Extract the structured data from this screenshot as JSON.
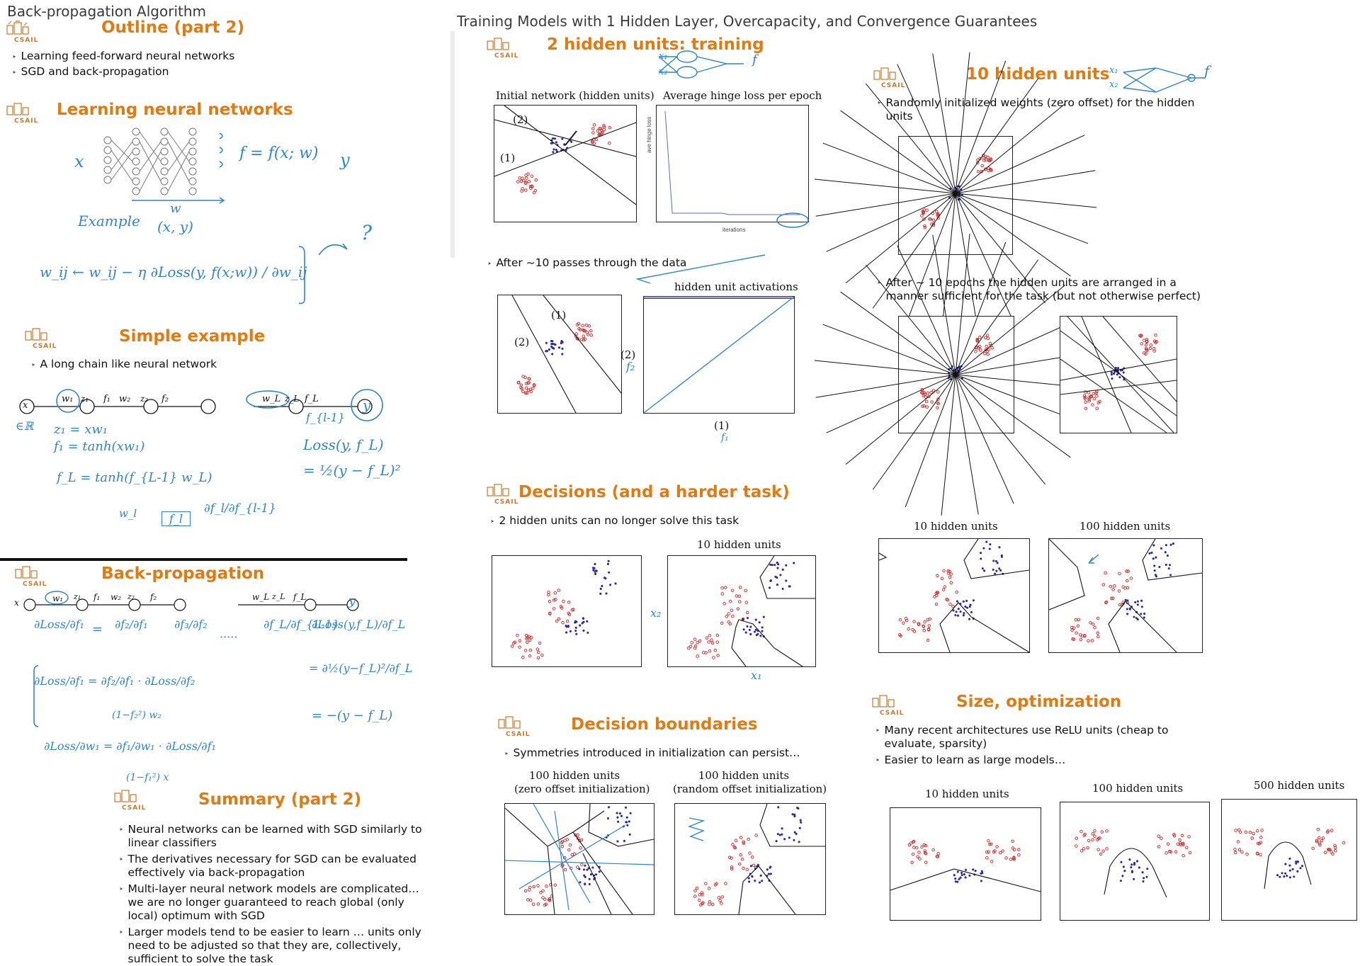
{
  "page_title_left": "Back-propagation Algorithm",
  "page_title_center": "Training Models with 1 Hidden Layer, Overcapacity, and Convergence Guarantees",
  "logo_text": "CSAIL",
  "colors": {
    "accent": "#e07b12",
    "ink": "#2f86c8",
    "red": "#d22222",
    "blue": "#2222aa"
  },
  "left": {
    "outline": {
      "title": "Outline (part 2)",
      "bullets": [
        "Learning feed-forward neural networks",
        "SGD and back-propagation"
      ]
    },
    "learning": {
      "title": "Learning neural networks",
      "notes": [
        "f = f(x; w)",
        "x",
        "y",
        "Example",
        "(x, y)",
        "w",
        "w_ij ← w_ij − η ∂Loss(y, f(x;w)) / ∂w_ij",
        "?"
      ]
    },
    "simple": {
      "title": "Simple example",
      "bullets": [
        "A long chain like neural network"
      ],
      "notes": [
        "z₁ = xw₁",
        "f₁ = tanh(xw₁)",
        "f_L = tanh(f_{L-1} w_L)",
        "Loss(y, f_L)",
        "= ½(y − f_L)²",
        "∈ℝ",
        "∈ℝ",
        "f_{l-1}",
        "w_l",
        "f_l",
        "∂f_l/∂f_{l-1}"
      ],
      "chain": [
        "x",
        "w₁",
        "z₁",
        "f₁",
        "w₂",
        "z₂",
        "f₂",
        "w_L",
        "z_L",
        "f_L",
        "y"
      ]
    },
    "backprop": {
      "title": "Back-propagation",
      "chain": [
        "x",
        "w₁",
        "z₁",
        "f₁",
        "w₂",
        "z₂",
        "f₂",
        "w_L",
        "z_L",
        "f_L",
        "y"
      ],
      "notes": [
        "∂Loss/∂f₁",
        "=",
        "∂f₂/∂f₁",
        "∂f₃/∂f₂",
        "·····",
        "∂f_L/∂f_{L-1}",
        "∂Loss(y,f_L)/∂f_L",
        "∂Loss/∂f₁ = ∂f₂/∂f₁ · ∂Loss/∂f₂",
        "(1−f₂²) w₂",
        "= ∂½(y−f_L)²/∂f_L",
        "= −(y − f_L)",
        "∂Loss/∂w₁ = ∂f₁/∂w₁ · ∂Loss/∂f₁",
        "(1−f₁²) x"
      ]
    },
    "summary": {
      "title": "Summary (part 2)",
      "bullets": [
        "Neural networks can be learned with SGD similarly to linear classifiers",
        "The derivatives necessary for SGD can be evaluated effectively via back-propagation",
        "Multi-layer neural network models are complicated… we are no longer guaranteed to reach global (only local) optimum with SGD",
        "Larger models tend to be easier to learn … units only need to be adjusted so that they are, collectively, sufficient to solve the task"
      ]
    }
  },
  "center": {
    "two_units": {
      "title": "2 hidden units: training",
      "plot1_title": "Initial network (hidden units)",
      "plot2_title": "Average hinge loss per epoch",
      "plot2_ylabel": "ave hinge loss",
      "plot2_xlabel": "iterations",
      "bullets": [
        "After ~10 passes through the data"
      ],
      "plot4_title": "hidden unit activations",
      "labels": [
        "(1)",
        "(2)",
        "(1)",
        "(2)",
        "(2)",
        "(1)",
        "f₁",
        "f₂",
        "f",
        "x₁",
        "x₂"
      ]
    },
    "decisions": {
      "title": "Decisions (and a harder task)",
      "bullets": [
        "2 hidden units can no longer solve this task"
      ],
      "plot_title": "10 hidden units",
      "hw": [
        "x₂",
        "x₁"
      ]
    },
    "boundaries": {
      "title": "Decision boundaries",
      "bullets": [
        "Symmetries introduced in initialization can persist…"
      ],
      "plot1_title": [
        "100 hidden units",
        "(zero offset initialization)"
      ],
      "plot2_title": [
        "100 hidden units",
        "(random offset initialization)"
      ]
    }
  },
  "right": {
    "ten_units": {
      "title": "10 hidden units",
      "bullets": [
        "Randomly initialized weights (zero offset) for the hidden units",
        "After ~ 10 epochs the hidden units are arranged in a manner sufficient for the task (but not otherwise perfect)"
      ],
      "hw": [
        "x₁",
        "x₂",
        "f"
      ]
    },
    "harder": {
      "plot1_title": "10 hidden units",
      "plot2_title": "100 hidden units"
    },
    "size": {
      "title": "Size, optimization",
      "bullets": [
        "Many recent architectures use ReLU units (cheap to evaluate, sparsity)",
        "Easier to learn as large models…"
      ],
      "plot_titles": [
        "10 hidden units",
        "100 hidden units",
        "500 hidden units"
      ]
    }
  }
}
